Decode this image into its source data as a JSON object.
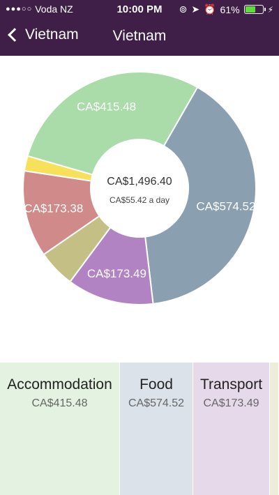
{
  "status_bar": {
    "carrier": "Voda NZ",
    "signal_dots": "●●●○○",
    "time": "10:00 PM",
    "battery_percent": "61%",
    "battery_level": 0.61
  },
  "nav": {
    "back_label": "Vietnam",
    "title": "Vietnam"
  },
  "summary": {
    "total": "CA$1,496.40",
    "daily": "CA$55.42 a day"
  },
  "chart_data": {
    "type": "pie",
    "title": "",
    "slices": [
      {
        "label": "CA$574.52",
        "value": 574.52,
        "color": "#8a9fb0"
      },
      {
        "label": "CA$173.49",
        "value": 173.49,
        "color": "#b183c3"
      },
      {
        "label": "",
        "value": 75.02,
        "color": "#c4bf85"
      },
      {
        "label": "CA$173.38",
        "value": 173.38,
        "color": "#d08a8a"
      },
      {
        "label": "",
        "value": 30,
        "color": "#f7e15a"
      },
      {
        "label": "CA$415.48",
        "value": 415.48,
        "color": "#a9dca9"
      }
    ]
  },
  "cards": [
    {
      "name": "Accommodation",
      "amount": "CA$415.48",
      "color": "#e4f2e1"
    },
    {
      "name": "Food",
      "amount": "CA$574.52",
      "color": "#dbe2ea"
    },
    {
      "name": "Transport",
      "amount": "CA$173.49",
      "color": "#e6d9ea"
    },
    {
      "name": "",
      "amount": "",
      "color": "#eeedda"
    }
  ]
}
